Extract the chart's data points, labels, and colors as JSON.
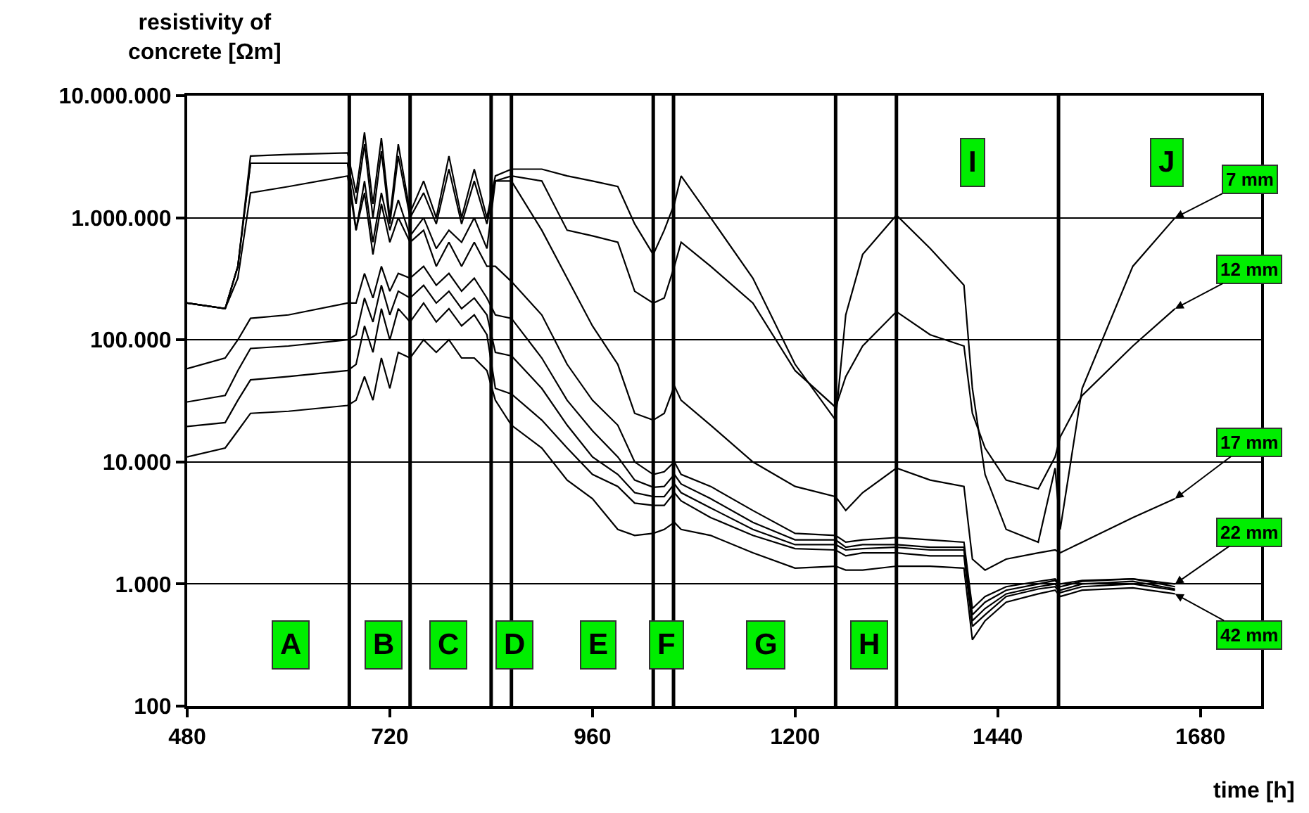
{
  "chart_data": {
    "type": "line",
    "ylabel": "resistivity of\nconcrete [Ωm]",
    "xlabel": "time [h]",
    "x": [
      480,
      525,
      540,
      555,
      600,
      670,
      680,
      690,
      700,
      710,
      720,
      730,
      744,
      760,
      775,
      790,
      805,
      820,
      835,
      845,
      864,
      900,
      930,
      960,
      990,
      1010,
      1032,
      1045,
      1057,
      1065,
      1100,
      1150,
      1200,
      1248,
      1260,
      1280,
      1320,
      1360,
      1400,
      1410,
      1425,
      1450,
      1488,
      1508,
      1514,
      1540,
      1600,
      1650
    ],
    "series": [
      {
        "name": "7 mm",
        "color": "#000000",
        "values": [
          200000,
          180000,
          400000,
          3200000,
          3300000,
          3400000,
          1600000,
          5000000,
          1300000,
          4500000,
          1000000,
          4000000,
          1100000,
          2000000,
          1000000,
          3200000,
          1000000,
          2500000,
          1000000,
          2200000,
          2500000,
          2500000,
          2200000,
          2000000,
          1800000,
          890000,
          500000,
          790000,
          1300000,
          2200000,
          1000000,
          320000,
          63000,
          22000,
          160000,
          500000,
          1050000,
          560000,
          280000,
          40000,
          7900,
          2800,
          2200,
          8900,
          2800,
          40000,
          400000,
          1000000
        ]
      },
      {
        "name": "12 mm",
        "color": "#000000",
        "values": [
          200000,
          180000,
          400000,
          2800000,
          2800000,
          2800000,
          1300000,
          4000000,
          1000000,
          3500000,
          890000,
          3200000,
          1000000,
          1600000,
          890000,
          2500000,
          890000,
          2000000,
          890000,
          2000000,
          2200000,
          2000000,
          790000,
          710000,
          630000,
          250000,
          200000,
          220000,
          400000,
          630000,
          400000,
          200000,
          56000,
          28000,
          50000,
          89000,
          170000,
          110000,
          89000,
          25000,
          13000,
          7100,
          6000,
          11000,
          16000,
          35000,
          89000,
          180000
        ]
      },
      {
        "name": "17 mm",
        "color": "#000000",
        "values": [
          200000,
          180000,
          320000,
          1600000,
          1800000,
          2200000,
          790000,
          2000000,
          630000,
          1600000,
          790000,
          1400000,
          710000,
          1000000,
          560000,
          790000,
          630000,
          1000000,
          560000,
          2000000,
          2000000,
          790000,
          320000,
          130000,
          63000,
          25000,
          22000,
          25000,
          42000,
          32000,
          20000,
          10000,
          6300,
          5200,
          4000,
          5600,
          8900,
          7100,
          6300,
          1600,
          1300,
          1600,
          1800,
          1900,
          1800,
          2200,
          3500,
          5000
        ]
      },
      {
        "name": "22 mm",
        "color": "#000000",
        "values": [
          200000,
          180000,
          400000,
          2800000,
          2800000,
          2800000,
          790000,
          1600000,
          500000,
          1300000,
          630000,
          1000000,
          630000,
          790000,
          400000,
          630000,
          400000,
          630000,
          400000,
          400000,
          300000,
          160000,
          63000,
          32000,
          20000,
          10000,
          7900,
          8300,
          10000,
          7900,
          6300,
          4000,
          2600,
          2500,
          2200,
          2300,
          2400,
          2300,
          2200,
          630,
          790,
          950,
          1050,
          1100,
          1000,
          1070,
          1100,
          1000
        ]
      },
      {
        "color": "#000000",
        "values": [
          58000,
          71000,
          100000,
          150000,
          160000,
          200000,
          200000,
          350000,
          220000,
          400000,
          250000,
          350000,
          320000,
          400000,
          280000,
          350000,
          250000,
          320000,
          220000,
          160000,
          150000,
          71000,
          32000,
          18000,
          11000,
          7100,
          6200,
          6300,
          7900,
          6600,
          5000,
          3200,
          2300,
          2300,
          2000,
          2100,
          2100,
          2000,
          2000,
          560,
          710,
          890,
          1000,
          1070,
          950,
          1050,
          1100,
          950
        ]
      },
      {
        "color": "#000000",
        "values": [
          31000,
          35000,
          56000,
          85000,
          89000,
          100000,
          110000,
          220000,
          140000,
          280000,
          160000,
          250000,
          220000,
          280000,
          200000,
          250000,
          180000,
          220000,
          160000,
          79000,
          74000,
          40000,
          20000,
          11000,
          7900,
          5600,
          5200,
          5200,
          6600,
          5600,
          4200,
          2800,
          2100,
          2100,
          1900,
          1950,
          2000,
          1900,
          1900,
          500,
          630,
          830,
          950,
          1000,
          890,
          1000,
          1050,
          910
        ]
      },
      {
        "color": "#000000",
        "values": [
          19500,
          21000,
          32000,
          47000,
          50000,
          56000,
          63000,
          130000,
          79000,
          180000,
          100000,
          180000,
          140000,
          200000,
          140000,
          180000,
          130000,
          160000,
          110000,
          40000,
          36000,
          22000,
          13000,
          7900,
          6300,
          4600,
          4400,
          4400,
          5600,
          4800,
          3500,
          2500,
          1950,
          1900,
          1700,
          1800,
          1800,
          1700,
          1700,
          450,
          560,
          790,
          910,
          950,
          850,
          950,
          1000,
          890
        ]
      },
      {
        "name": "42 mm",
        "color": "#000000",
        "values": [
          11000,
          13000,
          18000,
          25000,
          26000,
          29000,
          32000,
          50000,
          32000,
          71000,
          40000,
          79000,
          71000,
          100000,
          79000,
          100000,
          71000,
          71000,
          56000,
          32000,
          20000,
          13000,
          7100,
          5000,
          2800,
          2500,
          2600,
          2800,
          3200,
          2800,
          2500,
          1800,
          1350,
          1400,
          1300,
          1300,
          1400,
          1400,
          1350,
          350,
          500,
          710,
          830,
          890,
          790,
          890,
          930,
          830
        ]
      }
    ],
    "log": "y",
    "xlim": [
      480,
      1752
    ],
    "xticks": [
      480,
      720,
      960,
      1200,
      1440,
      1680
    ],
    "ylim": [
      100,
      10000000
    ],
    "yticks": [
      100,
      {
        "value": 1000,
        "label": "1.000"
      },
      {
        "value": 10000,
        "label": "10.000"
      },
      {
        "value": 100000,
        "label": "100.000"
      },
      {
        "value": 1000000,
        "label": "1.000.000"
      },
      {
        "value": 10000000,
        "label": "10.000.000"
      }
    ],
    "grid": "y",
    "legend": false,
    "marker": "none",
    "line_style": "solid",
    "ref_lines": [
      {
        "axis": "x",
        "value": 672,
        "color": "#000000"
      },
      {
        "axis": "x",
        "value": 744,
        "color": "#000000"
      },
      {
        "axis": "x",
        "value": 840,
        "color": "#000000"
      },
      {
        "axis": "x",
        "value": 864,
        "color": "#000000"
      },
      {
        "axis": "x",
        "value": 1032,
        "color": "#000000"
      },
      {
        "axis": "x",
        "value": 1056,
        "color": "#000000"
      },
      {
        "axis": "x",
        "value": 1248,
        "color": "#000000"
      },
      {
        "axis": "x",
        "value": 1320,
        "color": "#000000"
      },
      {
        "axis": "x",
        "value": 1512,
        "color": "#000000"
      }
    ],
    "annotations": [
      {
        "text": "A",
        "x": 602,
        "y": 320
      },
      {
        "text": "B",
        "x": 712,
        "y": 320
      },
      {
        "text": "C",
        "x": 789,
        "y": 320
      },
      {
        "text": "D",
        "x": 867,
        "y": 320
      },
      {
        "text": "E",
        "x": 966,
        "y": 320
      },
      {
        "text": "F",
        "x": 1048,
        "y": 320
      },
      {
        "text": "G",
        "x": 1166,
        "y": 320
      },
      {
        "text": "H",
        "x": 1288,
        "y": 320
      },
      {
        "text": "I",
        "x": 1411,
        "y": 2800000
      },
      {
        "text": "J",
        "x": 1640,
        "y": 2800000
      }
    ]
  }
}
